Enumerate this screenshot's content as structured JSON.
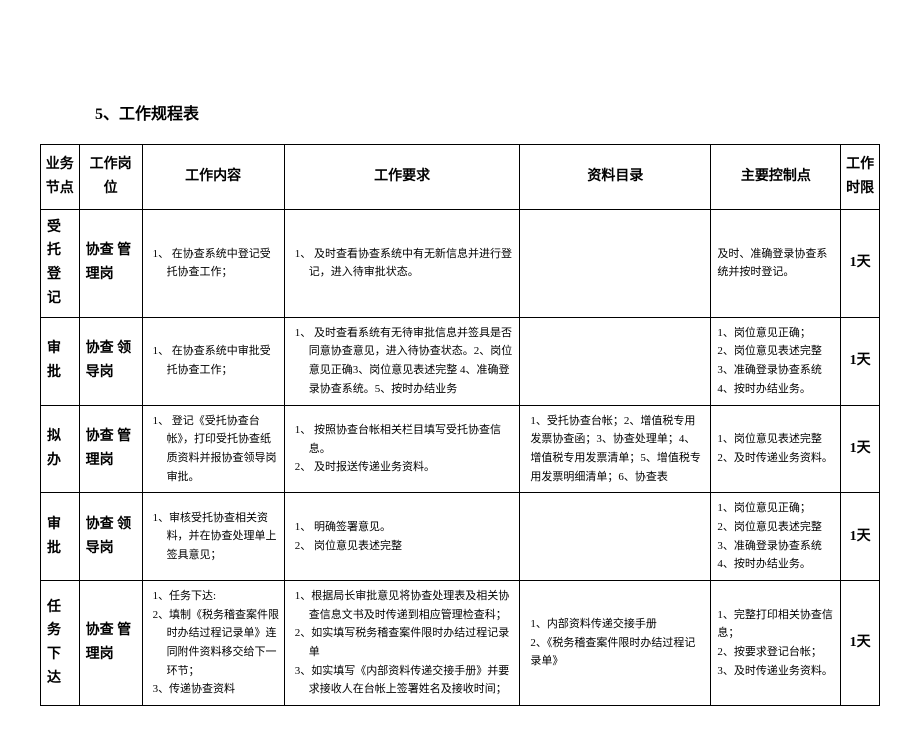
{
  "title": "5、工作规程表",
  "headers": [
    "业务节点",
    "工作岗位",
    "工作内容",
    "工作要求",
    "资料目录",
    "主要控制点",
    "工作时限"
  ],
  "rows": [
    {
      "node": "受托登记",
      "position": "协查管理岗",
      "content": "1、 在协查系统中登记受托协查工作；",
      "requirement": "1、 及时查看协查系统中有无新信息并进行登记，进入待审批状态。",
      "materials": "",
      "control": "及时、准确登录协查系统并按时登记。",
      "time": "1天"
    },
    {
      "node": "审批",
      "position": "协查领导岗",
      "content": "1、 在协查系统中审批受托协查工作；",
      "requirement": "1、 及时查看系统有无待审批信息并签具是否同意协查意见，进入待协查状态。2、岗位意见正确3、岗位意见表述完整 4、准确登录协查系统。5、按时办结业务",
      "materials": "",
      "control": "1、岗位意见正确；\n2、岗位意见表述完整\n3、准确登录协查系统\n4、按时办结业务。",
      "time": "1天"
    },
    {
      "node": "拟办",
      "position": "协查管理岗",
      "content": "1、 登记《受托协查台帐》，打印受托协查纸质资料并报协查领导岗审批。",
      "requirement": "1、 按照协查台帐相关栏目填写受托协查信息。\n2、 及时报送传递业务资料。",
      "materials": "1、受托协查台帐；2、增值税专用发票协查函；3、协查处理单；4、增值税专用发票清单；5、增值税专用发票明细清单；6、协查表",
      "control": "1、岗位意见表述完整\n2、及时传递业务资料。",
      "time": "1天"
    },
    {
      "node": "审批",
      "position": "协查领导岗",
      "content": "1、审核受托协查相关资料，并在协查处理单上签具意见；",
      "requirement": "1、 明确签署意见。\n2、 岗位意见表述完整",
      "materials": "",
      "control": "1、岗位意见正确；\n2、岗位意见表述完整\n3、准确登录协查系统\n4、按时办结业务。",
      "time": "1天"
    },
    {
      "node": "任务下达",
      "position": "协查管理岗",
      "content": "1、任务下达:\n2、填制《税务稽查案件限时办结过程记录单》连同附件资料移交给下一环节；\n3、传递协查资料",
      "requirement": "1、根据局长审批意见将协查处理表及相关协查信息文书及时传递到相应管理检查科；\n2、如实填写税务稽查案件限时办结过程记录单\n3、如实填写《内部资料传递交接手册》并要求接收人在台帐上签署姓名及接收时间；",
      "materials": "1、内部资料传递交接手册\n2、《税务稽查案件限时办结过程记录单》",
      "control": "1、完整打印相关协查信息；\n2、按要求登记台帐；\n3、及时传递业务资料。",
      "time": "1天"
    }
  ]
}
